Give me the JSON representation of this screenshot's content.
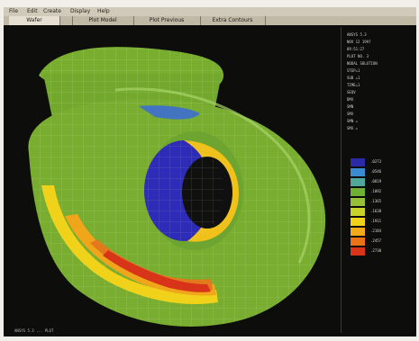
{
  "menu": [
    "File",
    "Edit",
    "Create",
    "Display",
    "Help"
  ],
  "tabs": [
    "Wafer",
    "",
    "Plot Model",
    "Plot Previous",
    "Extra Contours"
  ],
  "colors": {
    "background": "#0d0d0c",
    "mesh_green": "#7fb02f",
    "blue": "#2d2bb7",
    "yellow": "#f1d21a",
    "orange": "#f0a11a",
    "red": "#d8341a"
  },
  "info_panel": {
    "lines": [
      "ANSYS 5.3",
      "NOV 12 1997",
      "09:51:27",
      "PLOT NO. 3",
      "NODAL SOLUTION",
      "STEP=1",
      "SUB =1",
      "TIME=1",
      "SEQV",
      "DMX",
      "SMN",
      "SMX",
      "SMN =",
      "SMX ="
    ]
  },
  "legend": {
    "swatch_colors": [
      "#2b2aa7",
      "#3a8ccf",
      "#4fa89a",
      "#6fb034",
      "#95c037",
      "#c8d22a",
      "#f0d21b",
      "#f0aa1a",
      "#ea7219",
      "#d8341a"
    ],
    "values": [
      ".0273",
      ".0546",
      ".0819",
      ".1092",
      ".1365",
      ".1638",
      ".1911",
      ".2184",
      ".2457",
      ".2730"
    ]
  },
  "caption": "ANSYS 5.3 ... PLOT"
}
